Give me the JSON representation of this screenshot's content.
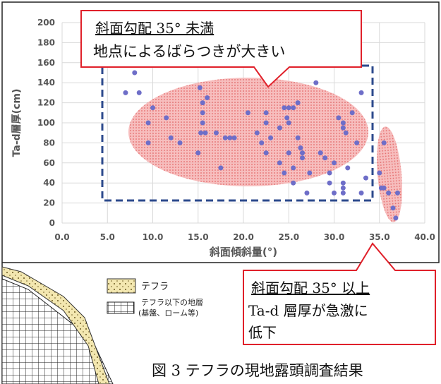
{
  "chart_data": {
    "type": "scatter",
    "xlabel": "斜面傾斜量(°)",
    "ylabel": "Ta-d層厚(cm)",
    "xlim": [
      0,
      40
    ],
    "ylim": [
      0,
      200
    ],
    "xticks": [
      {
        "value": 0,
        "label": "0.0"
      },
      {
        "value": 5,
        "label": "5.0"
      },
      {
        "value": 10,
        "label": "10.0"
      },
      {
        "value": 15,
        "label": "15.0"
      },
      {
        "value": 20,
        "label": "20.0"
      },
      {
        "value": 25,
        "label": "25.0"
      },
      {
        "value": 30,
        "label": "30.0"
      },
      {
        "value": 35,
        "label": "35.0"
      },
      {
        "value": 40,
        "label": "40.0"
      }
    ],
    "yticks": [
      0,
      20,
      40,
      60,
      80,
      100,
      120,
      140,
      160,
      180,
      200
    ],
    "grid": true,
    "color": "#6e6ec8",
    "x": [
      7,
      8,
      8.5,
      9.5,
      9.5,
      10,
      11.5,
      12,
      13,
      15,
      15.2,
      15.3,
      15.5,
      15.5,
      15.5,
      15.8,
      16,
      17,
      17.5,
      18,
      18.5,
      19,
      20.5,
      21.5,
      22,
      22.5,
      22.5,
      22.5,
      23,
      24,
      24,
      24.5,
      24.5,
      24.8,
      25,
      25,
      25,
      25.5,
      25.5,
      25.5,
      26,
      26,
      26.3,
      26.5,
      26.5,
      27,
      27.3,
      28,
      28.5,
      29,
      29.5,
      29.5,
      30,
      30,
      30.5,
      31,
      31,
      31,
      31,
      31,
      31.3,
      31.5,
      32,
      32.5,
      33,
      33,
      33.5,
      35,
      35.2,
      35.5,
      35.5,
      36,
      36.5,
      36.8,
      37
    ],
    "values": [
      130,
      150,
      130,
      100,
      80,
      115,
      105,
      85,
      80,
      70,
      135,
      90,
      120,
      110,
      100,
      90,
      125,
      90,
      55,
      85,
      85,
      85,
      110,
      90,
      80,
      70,
      100,
      110,
      85,
      95,
      60,
      50,
      115,
      105,
      100,
      115,
      70,
      55,
      40,
      115,
      120,
      85,
      75,
      70,
      65,
      30,
      50,
      140,
      70,
      65,
      50,
      40,
      60,
      30,
      105,
      100,
      40,
      35,
      30,
      95,
      90,
      55,
      110,
      80,
      30,
      130,
      45,
      50,
      35,
      80,
      35,
      30,
      15,
      5,
      30
    ]
  },
  "annotations": {
    "callout_low": {
      "title": "斜面勾配 35° 未満",
      "text": "地点によるばらつきが大きい"
    },
    "callout_high": {
      "title": "斜面勾配 35° 以上",
      "lines": [
        "Ta-d 層厚が急激に",
        "低下"
      ]
    }
  },
  "diagram_legend": {
    "tephra": "テフラ",
    "below_1": "テフラ以下の地層",
    "below_2": "(基盤、ローム等)"
  },
  "caption": "図 3 テフラの現地露頭調査結果"
}
